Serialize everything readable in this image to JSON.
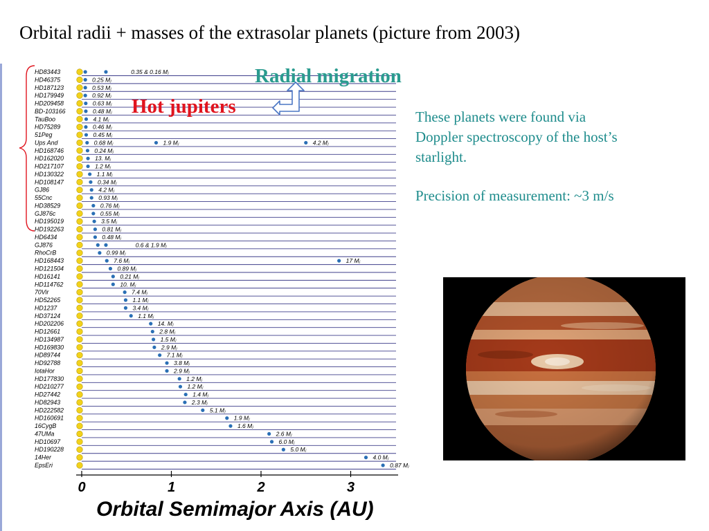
{
  "slide": {
    "title": "Orbital radii + masses of the extrasolar planets (picture from 2003)",
    "radial_label": "Radial migration",
    "hot_label": "Hot  jupiters",
    "info_line1": "These planets were found via  Doppler spectroscopy of the host’s starlight.",
    "info_line2": "Precision of measurement: ~3 m/s",
    "photo_icon": "jupiter-photo",
    "colors": {
      "radial": "#2a9b8f",
      "hot": "#e0141e",
      "info": "#1e8c8c",
      "star": "#f2d21b",
      "planet": "#2a6fb5",
      "row_line": "#3d3d8a"
    }
  },
  "chart_data": {
    "type": "scatter",
    "xlabel": "Orbital Semimajor Axis  (AU)",
    "xticks": [
      0,
      1,
      2,
      3
    ],
    "xlim": [
      -0.03,
      3.5
    ],
    "mass_unit_suffix": " Mⱼ",
    "rows": [
      {
        "star": "HD83443",
        "planets": [
          {
            "a": 0.04
          },
          {
            "a": 0.27
          }
        ],
        "label": "0.35  &  0.16",
        "label_at": 0.55
      },
      {
        "star": "HD46375",
        "planets": [
          {
            "a": 0.04,
            "m": "0.25"
          }
        ]
      },
      {
        "star": "HD187123",
        "planets": [
          {
            "a": 0.04,
            "m": "0.53"
          }
        ]
      },
      {
        "star": "HD179949",
        "planets": [
          {
            "a": 0.04,
            "m": "0.92"
          }
        ]
      },
      {
        "star": "HD209458",
        "planets": [
          {
            "a": 0.045,
            "m": "0.63"
          }
        ]
      },
      {
        "star": "BD-103166",
        "planets": [
          {
            "a": 0.046,
            "m": "0.48"
          }
        ]
      },
      {
        "star": "TauBoo",
        "planets": [
          {
            "a": 0.05,
            "m": "4.1"
          }
        ]
      },
      {
        "star": "HD75289",
        "planets": [
          {
            "a": 0.046,
            "m": "0.46"
          }
        ]
      },
      {
        "star": "51Peg",
        "planets": [
          {
            "a": 0.05,
            "m": "0.45"
          }
        ]
      },
      {
        "star": "Ups And",
        "planets": [
          {
            "a": 0.06,
            "m": "0.68"
          },
          {
            "a": 0.83,
            "m": "1.9"
          },
          {
            "a": 2.5,
            "m": "4.2"
          }
        ]
      },
      {
        "star": "HD168746",
        "planets": [
          {
            "a": 0.065,
            "m": "0.24"
          }
        ]
      },
      {
        "star": "HD162020",
        "planets": [
          {
            "a": 0.07,
            "m": "13."
          }
        ]
      },
      {
        "star": "HD217107",
        "planets": [
          {
            "a": 0.07,
            "m": "1.2"
          }
        ]
      },
      {
        "star": "HD130322",
        "planets": [
          {
            "a": 0.09,
            "m": "1.1"
          }
        ]
      },
      {
        "star": "HD108147",
        "planets": [
          {
            "a": 0.1,
            "m": "0.34"
          }
        ]
      },
      {
        "star": "GJ86",
        "planets": [
          {
            "a": 0.11,
            "m": "4.2"
          }
        ]
      },
      {
        "star": "55Cnc",
        "planets": [
          {
            "a": 0.11,
            "m": "0.93"
          }
        ]
      },
      {
        "star": "HD38529",
        "planets": [
          {
            "a": 0.13,
            "m": "0.76"
          }
        ]
      },
      {
        "star": "GJ876c",
        "planets": [
          {
            "a": 0.13,
            "m": "0.55"
          }
        ]
      },
      {
        "star": "HD195019",
        "planets": [
          {
            "a": 0.14,
            "m": "3.5"
          }
        ]
      },
      {
        "star": "HD192263",
        "planets": [
          {
            "a": 0.15,
            "m": "0.81"
          }
        ]
      },
      {
        "star": "HD6434",
        "planets": [
          {
            "a": 0.15,
            "m": "0.48"
          }
        ]
      },
      {
        "star": "GJ876",
        "planets": [
          {
            "a": 0.18
          },
          {
            "a": 0.27
          }
        ],
        "label": "0.6  &  1.9",
        "label_at": 0.6
      },
      {
        "star": "RhoCrB",
        "planets": [
          {
            "a": 0.2,
            "m": "0.99"
          }
        ]
      },
      {
        "star": "HD168443",
        "planets": [
          {
            "a": 0.28,
            "m": "7.6"
          },
          {
            "a": 2.87,
            "m": "17"
          }
        ]
      },
      {
        "star": "HD121504",
        "planets": [
          {
            "a": 0.32,
            "m": "0.89"
          }
        ]
      },
      {
        "star": "HD16141",
        "planets": [
          {
            "a": 0.35,
            "m": "0.21"
          }
        ]
      },
      {
        "star": "HD114762",
        "planets": [
          {
            "a": 0.35,
            "m": "10."
          }
        ]
      },
      {
        "star": "70Vir",
        "planets": [
          {
            "a": 0.48,
            "m": "7.4"
          }
        ]
      },
      {
        "star": "HD52265",
        "planets": [
          {
            "a": 0.49,
            "m": "1.1"
          }
        ]
      },
      {
        "star": "HD1237",
        "planets": [
          {
            "a": 0.49,
            "m": "3.4"
          }
        ]
      },
      {
        "star": "HD37124",
        "planets": [
          {
            "a": 0.55,
            "m": "1.1"
          }
        ]
      },
      {
        "star": "HD202206",
        "planets": [
          {
            "a": 0.77,
            "m": "14."
          }
        ]
      },
      {
        "star": "HD12661",
        "planets": [
          {
            "a": 0.79,
            "m": "2.8"
          }
        ]
      },
      {
        "star": "HD134987",
        "planets": [
          {
            "a": 0.8,
            "m": "1.5"
          }
        ]
      },
      {
        "star": "HD169830",
        "planets": [
          {
            "a": 0.81,
            "m": "2.9"
          }
        ]
      },
      {
        "star": "HD89744",
        "planets": [
          {
            "a": 0.87,
            "m": "7.1"
          }
        ]
      },
      {
        "star": "HD92788",
        "planets": [
          {
            "a": 0.95,
            "m": "3.8"
          }
        ]
      },
      {
        "star": "IotaHor",
        "planets": [
          {
            "a": 0.95,
            "m": "2.9"
          }
        ]
      },
      {
        "star": "HD177830",
        "planets": [
          {
            "a": 1.09,
            "m": "1.2"
          }
        ]
      },
      {
        "star": "HD210277",
        "planets": [
          {
            "a": 1.1,
            "m": "1.2"
          }
        ]
      },
      {
        "star": "HD27442",
        "planets": [
          {
            "a": 1.16,
            "m": "1.4"
          }
        ]
      },
      {
        "star": "HD82943",
        "planets": [
          {
            "a": 1.15,
            "m": "2.3"
          }
        ]
      },
      {
        "star": "HD222582",
        "planets": [
          {
            "a": 1.35,
            "m": "5.1"
          }
        ]
      },
      {
        "star": "HD160691",
        "planets": [
          {
            "a": 1.62,
            "m": "1.9"
          }
        ]
      },
      {
        "star": "16CygB",
        "planets": [
          {
            "a": 1.66,
            "m": "1.6"
          }
        ]
      },
      {
        "star": "47UMa",
        "planets": [
          {
            "a": 2.09,
            "m": "2.6"
          }
        ]
      },
      {
        "star": "HD10697",
        "planets": [
          {
            "a": 2.12,
            "m": "6.0"
          }
        ]
      },
      {
        "star": "HD190228",
        "planets": [
          {
            "a": 2.25,
            "m": "5.0"
          }
        ]
      },
      {
        "star": "14Her",
        "planets": [
          {
            "a": 3.17,
            "m": "4.0"
          }
        ]
      },
      {
        "star": "EpsEri",
        "planets": [
          {
            "a": 3.36,
            "m": "0.87"
          }
        ]
      }
    ]
  }
}
